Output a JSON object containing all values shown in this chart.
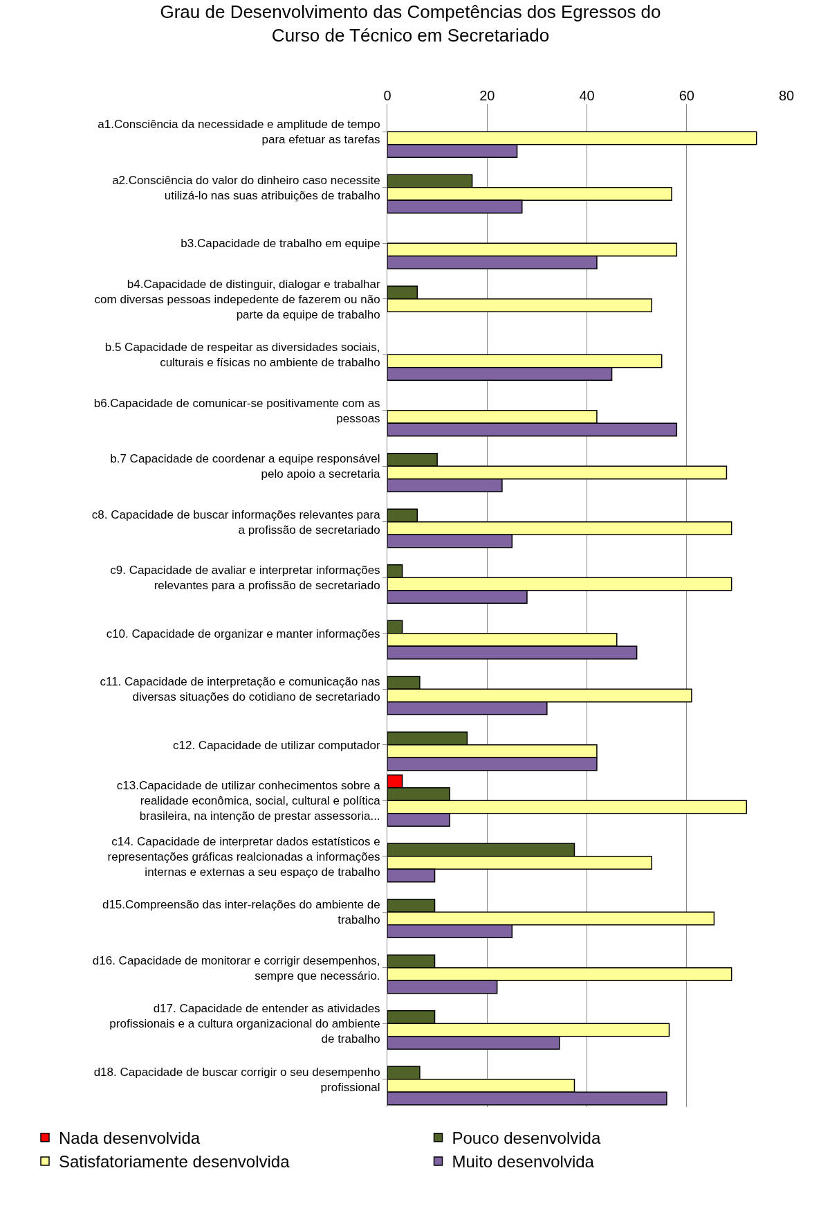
{
  "chart_data": {
    "type": "bar",
    "orientation": "horizontal",
    "title": "Grau de Desenvolvimento das Competências dos Egressos do Curso de Técnico em Secretariado",
    "categories": [
      "a1.Consciência da necessidade e amplitude de tempo para efetuar as tarefas",
      "a2.Consciência do valor do dinheiro caso necessite utilizá-lo nas suas atribuições de trabalho",
      "b3.Capacidade de trabalho em equipe",
      "b4.Capacidade de distinguir, dialogar e trabalhar com diversas pessoas indepedente de fazerem ou não parte da equipe de trabalho",
      "b.5 Capacidade de respeitar as diversidades sociais, culturais e físicas no ambiente de trabalho",
      "b6.Capacidade de comunicar-se positivamente com as pessoas",
      "b.7 Capacidade de coordenar a equipe responsável pelo apoio a secretaria",
      "c8. Capacidade de buscar informações relevantes para a profissão de secretariado",
      "c9. Capacidade de avaliar e interpretar informações relevantes para a profissão de secretariado",
      "c10. Capacidade de organizar e manter informações",
      "c11. Capacidade de interpretação e comunicação nas diversas situações do cotidiano de secretariado",
      "c12. Capacidade de utilizar computador",
      "c13.Capacidade de utilizar conhecimentos sobre a realidade econômica, social, cultural e política brasileira, na intenção de prestar assessoria...",
      "c14. Capacidade de interpretar dados estatísticos e representações gráficas realcionadas a informações internas e externas a seu espaço de trabalho",
      "d15.Compreensão das inter-relações do ambiente de trabalho",
      "d16. Capacidade de monitorar e corrigir desempenhos, sempre que necessário.",
      "d17. Capacidade de entender as atividades profissionais e a cultura organizacional do ambiente de trabalho",
      "d18. Capacidade de buscar corrigir o seu desempenho profissional"
    ],
    "series": [
      {
        "name": "Nada desenvolvida",
        "color": "#ff0000",
        "values": [
          null,
          null,
          null,
          null,
          null,
          null,
          null,
          null,
          null,
          null,
          null,
          null,
          3,
          null,
          null,
          null,
          null,
          null
        ]
      },
      {
        "name": "Pouco desenvolvida",
        "color": "#4f6228",
        "values": [
          null,
          17,
          null,
          6,
          null,
          null,
          10,
          6,
          3,
          3,
          6.5,
          16,
          12.5,
          37.5,
          9.5,
          9.5,
          9.5,
          6.5
        ]
      },
      {
        "name": "Satisfatoriamente desenvolvida",
        "color": "#ffff99",
        "values": [
          74,
          57,
          58,
          53,
          55,
          42,
          68,
          69,
          69,
          46,
          61,
          42,
          72,
          53,
          65.5,
          69,
          56.5,
          37.5
        ]
      },
      {
        "name": "Muito desenvolvida",
        "color": "#8064a2",
        "values": [
          26,
          27,
          42,
          null,
          45,
          58,
          23,
          25,
          28,
          50,
          32,
          42,
          12.5,
          9.5,
          25,
          22,
          34.5,
          56
        ]
      }
    ],
    "xlim": [
      0,
      80
    ],
    "xticks": [
      0,
      20,
      40,
      60,
      80
    ],
    "grid": "x",
    "legend": "bottom"
  }
}
